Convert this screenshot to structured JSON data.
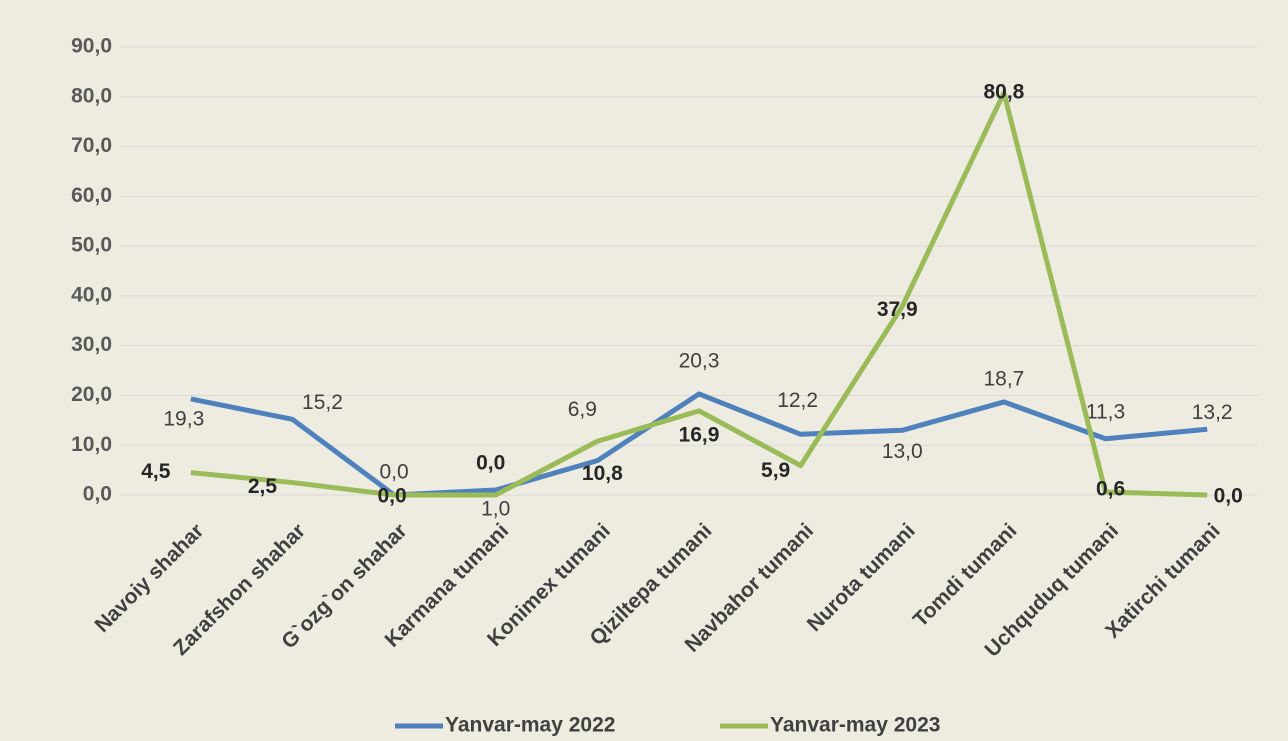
{
  "chart_data": {
    "type": "line",
    "categories": [
      "Navoiy shahar",
      "Zarafshon shahar",
      "G`ozg`on shahar",
      "Karmana tumani",
      "Konimex tumani",
      "Qiziltepa tumani",
      "Navbahor tumani",
      "Nurota tumani",
      "Tomdi tumani",
      "Uchquduq tumani",
      "Xatirchi tumani"
    ],
    "series": [
      {
        "name": "Yanvar-may 2022",
        "color": "#4f81bd",
        "values": [
          19.3,
          15.2,
          0.0,
          1.0,
          6.9,
          20.3,
          12.2,
          13.0,
          18.7,
          11.3,
          13.2
        ],
        "value_labels": [
          "19,3",
          "15,2",
          "0,0",
          "1,0",
          "6,9",
          "20,3",
          "12,2",
          "13,0",
          "18,7",
          "11,3",
          "13,2"
        ]
      },
      {
        "name": "Yanvar-may 2023",
        "color": "#9bbb59",
        "values": [
          4.5,
          2.5,
          0.0,
          0.0,
          10.8,
          16.9,
          5.9,
          37.9,
          80.8,
          0.6,
          0.0
        ],
        "value_labels": [
          "4,5",
          "2,5",
          "0,0",
          "0,0",
          "10,8",
          "16,9",
          "5,9",
          "37,9",
          "80,8",
          "0,6",
          "0,0"
        ]
      }
    ],
    "ylim": [
      0,
      90
    ],
    "yticks": [
      {
        "value": 0,
        "label": "0,0"
      },
      {
        "value": 10,
        "label": "10,0"
      },
      {
        "value": 20,
        "label": "20,0"
      },
      {
        "value": 30,
        "label": "30,0"
      },
      {
        "value": 40,
        "label": "40,0"
      },
      {
        "value": 50,
        "label": "50,0"
      },
      {
        "value": 60,
        "label": "60,0"
      },
      {
        "value": 70,
        "label": "70,0"
      },
      {
        "value": 80,
        "label": "80,0"
      },
      {
        "value": 90,
        "label": "90,0"
      }
    ],
    "grid": true,
    "legend": "bottom"
  }
}
